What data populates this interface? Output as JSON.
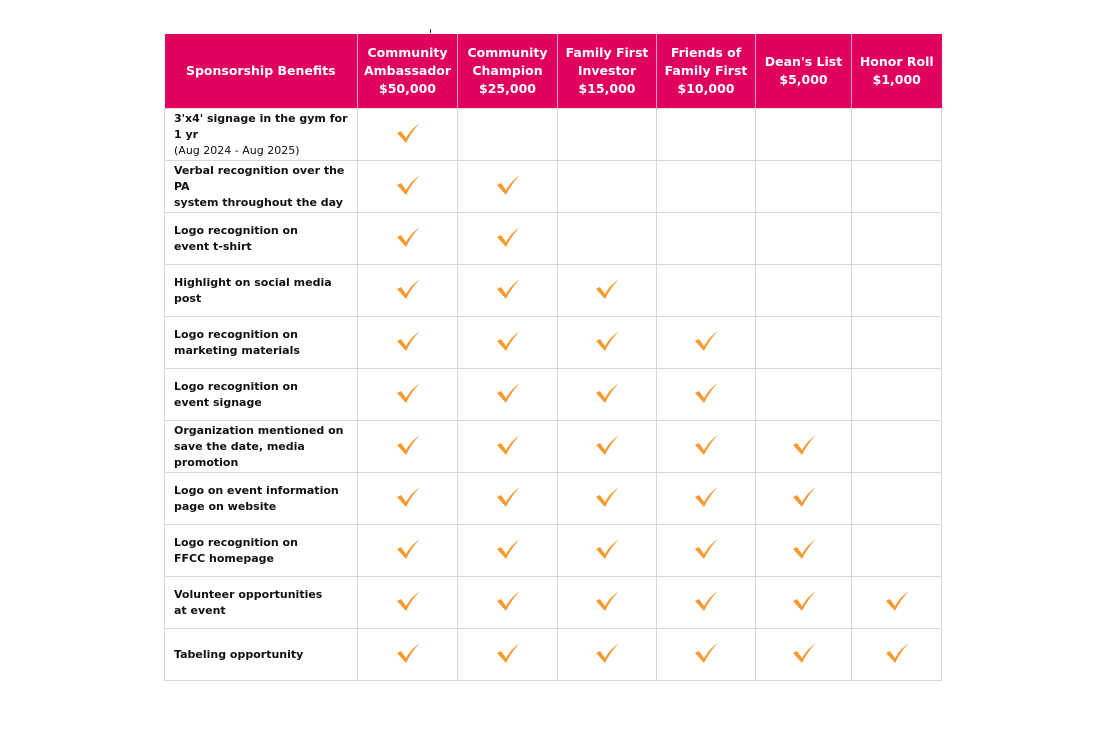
{
  "header": {
    "benefits_label": "Sponsorship Benefits",
    "tiers": [
      {
        "name_line1": "Community",
        "name_line2": "Ambassador",
        "amount": "$50,000"
      },
      {
        "name_line1": "Community",
        "name_line2": "Champion",
        "amount": "$25,000"
      },
      {
        "name_line1": "Family First",
        "name_line2": "Investor",
        "amount": "$15,000"
      },
      {
        "name_line1": "Friends of",
        "name_line2": "Family First",
        "amount": "$10,000"
      },
      {
        "name_line1": "",
        "name_line2": "Dean's List",
        "amount": "$5,000"
      },
      {
        "name_line1": "",
        "name_line2": "Honor Roll",
        "amount": "$1,000"
      }
    ]
  },
  "colors": {
    "header_bg": "#e0005e",
    "check": "#f39a32"
  },
  "rows": [
    {
      "line1": "3'x4' signage in the gym for 1 yr",
      "line2": "(Aug 2024 - Aug 2025)",
      "checks": [
        1,
        0,
        0,
        0,
        0,
        0
      ]
    },
    {
      "line1": "Verbal recognition over the PA",
      "line2": "system throughout the day",
      "checks": [
        1,
        1,
        0,
        0,
        0,
        0
      ]
    },
    {
      "line1": "Logo recognition on",
      "line2": "event t-shirt",
      "checks": [
        1,
        1,
        0,
        0,
        0,
        0
      ]
    },
    {
      "line1": "Highlight on social media post",
      "line2": "",
      "checks": [
        1,
        1,
        1,
        0,
        0,
        0
      ]
    },
    {
      "line1": "Logo recognition on",
      "line2": "marketing materials",
      "checks": [
        1,
        1,
        1,
        1,
        0,
        0
      ]
    },
    {
      "line1": "Logo recognition on",
      "line2": "event signage",
      "checks": [
        1,
        1,
        1,
        1,
        0,
        0
      ]
    },
    {
      "line1": "Organization mentioned on",
      "line2": "save the date, media promotion",
      "checks": [
        1,
        1,
        1,
        1,
        1,
        0
      ]
    },
    {
      "line1": "Logo on event information",
      "line2": "page on website",
      "checks": [
        1,
        1,
        1,
        1,
        1,
        0
      ]
    },
    {
      "line1": "Logo recognition on",
      "line2": "FFCC homepage",
      "checks": [
        1,
        1,
        1,
        1,
        1,
        0
      ]
    },
    {
      "line1": "Volunteer opportunities",
      "line2": "at event",
      "checks": [
        1,
        1,
        1,
        1,
        1,
        1
      ]
    },
    {
      "line1": "Tabeling opportunity",
      "line2": "",
      "checks": [
        1,
        1,
        1,
        1,
        1,
        1
      ]
    }
  ]
}
